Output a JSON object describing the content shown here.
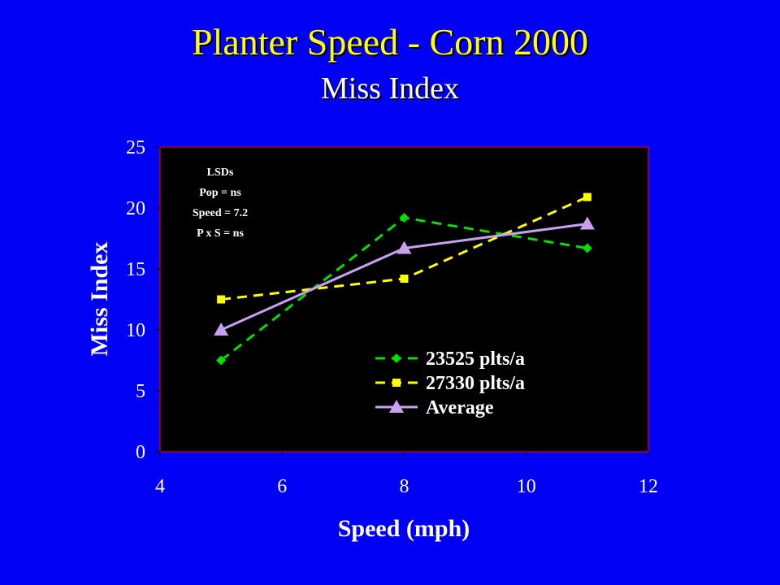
{
  "slide": {
    "title": "Planter Speed - Corn 2000",
    "subtitle": "Miss Index"
  },
  "colors": {
    "background": "#0000f5",
    "plot_area": "#000000",
    "plot_border": "#ff0000",
    "title": "#ffff00"
  },
  "chart_data": {
    "type": "line",
    "xlabel": "Speed (mph)",
    "ylabel": "Miss Index",
    "xlim": [
      4,
      12
    ],
    "ylim": [
      0,
      25
    ],
    "xticks": [
      4,
      6,
      8,
      10,
      12
    ],
    "yticks": [
      0,
      5,
      10,
      15,
      20,
      25
    ],
    "grid": false,
    "legend_position": "bottom-right",
    "annotation": [
      "LSDs",
      "Pop = ns",
      "Speed = 7.2",
      "P x S = ns"
    ],
    "series": [
      {
        "name": "23525 plts/a",
        "x": [
          5,
          8,
          11
        ],
        "y": [
          7.5,
          19.2,
          16.7
        ],
        "color": "#00e000",
        "marker": "diamond",
        "line": "dashed"
      },
      {
        "name": "27330 plts/a",
        "x": [
          5,
          8,
          11
        ],
        "y": [
          12.5,
          14.2,
          20.9
        ],
        "color": "#ffff00",
        "marker": "square",
        "line": "dashed"
      },
      {
        "name": "Average",
        "x": [
          5,
          8,
          11
        ],
        "y": [
          10.0,
          16.7,
          18.7
        ],
        "color": "#c8a0f0",
        "marker": "triangle",
        "line": "solid"
      }
    ]
  }
}
